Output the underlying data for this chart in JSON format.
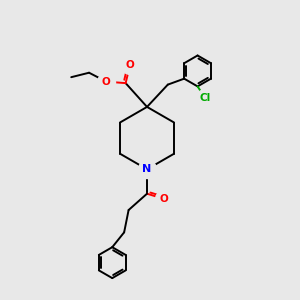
{
  "background_color": "#e8e8e8",
  "bond_color": "#000000",
  "atom_colors": {
    "O": "#ff0000",
    "N": "#0000ff",
    "Cl": "#00aa00",
    "C": "#000000"
  },
  "figsize": [
    3.0,
    3.0
  ],
  "dpi": 100
}
